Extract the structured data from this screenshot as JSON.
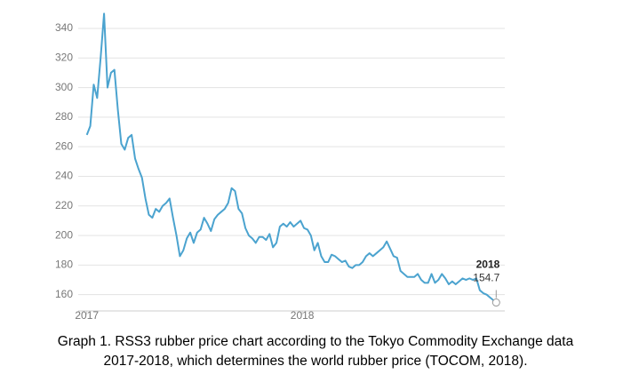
{
  "chart_data": {
    "type": "line",
    "x": [
      2017,
      2017.016,
      2017.032,
      2017.048,
      2017.064,
      2017.08,
      2017.096,
      2017.112,
      2017.128,
      2017.144,
      2017.16,
      2017.176,
      2017.192,
      2017.208,
      2017.224,
      2017.24,
      2017.256,
      2017.272,
      2017.288,
      2017.304,
      2017.32,
      2017.336,
      2017.352,
      2017.368,
      2017.384,
      2017.4,
      2017.416,
      2017.432,
      2017.448,
      2017.464,
      2017.48,
      2017.496,
      2017.512,
      2017.528,
      2017.544,
      2017.56,
      2017.576,
      2017.592,
      2017.608,
      2017.624,
      2017.64,
      2017.656,
      2017.672,
      2017.688,
      2017.704,
      2017.72,
      2017.736,
      2017.752,
      2017.768,
      2017.784,
      2017.8,
      2017.816,
      2017.832,
      2017.848,
      2017.864,
      2017.88,
      2017.896,
      2017.912,
      2017.928,
      2017.944,
      2017.96,
      2017.976,
      2017.992,
      2018.008,
      2018.024,
      2018.04,
      2018.056,
      2018.072,
      2018.088,
      2018.104,
      2018.12,
      2018.136,
      2018.152,
      2018.168,
      2018.184,
      2018.2,
      2018.216,
      2018.232,
      2018.248,
      2018.264,
      2018.28,
      2018.296,
      2018.312,
      2018.328,
      2018.344,
      2018.36,
      2018.376,
      2018.392,
      2018.408,
      2018.424,
      2018.44,
      2018.456,
      2018.472,
      2018.488,
      2018.504,
      2018.52,
      2018.536,
      2018.552,
      2018.568,
      2018.584,
      2018.6,
      2018.616,
      2018.632,
      2018.648,
      2018.664,
      2018.68,
      2018.696,
      2018.712,
      2018.728,
      2018.744,
      2018.76,
      2018.776,
      2018.792,
      2018.808,
      2018.824,
      2018.84,
      2018.856,
      2018.872,
      2018.9
    ],
    "series": [
      {
        "color": "#4ba3cf",
        "values": [
          268,
          274,
          302,
          293,
          320,
          350,
          300,
          310,
          312,
          285,
          262,
          258,
          266,
          268,
          252,
          245,
          239,
          225,
          214,
          212,
          218,
          216,
          220,
          222,
          225,
          212,
          200,
          186,
          190,
          198,
          202,
          195,
          202,
          204,
          212,
          208,
          203,
          211,
          214,
          216,
          218,
          222,
          232,
          230,
          218,
          215,
          205,
          200,
          198,
          195,
          199,
          199,
          197,
          201,
          192,
          195,
          206,
          208,
          206,
          209,
          206,
          208,
          210,
          205,
          204,
          200,
          190,
          195,
          186,
          182,
          182,
          187,
          186,
          184,
          182,
          183,
          179,
          178,
          180,
          180,
          182,
          186,
          188,
          186,
          188,
          190,
          192,
          196,
          191,
          186,
          185,
          176,
          174,
          172,
          172,
          172,
          174,
          170,
          168,
          168,
          174,
          168,
          170,
          174,
          171,
          167,
          169,
          167,
          169,
          171,
          170,
          171,
          170,
          171,
          163,
          161,
          160,
          158,
          154.7
        ]
      }
    ],
    "annotation": "2018",
    "xlim": [
      2016.96,
      2018.94
    ],
    "xticks": [
      2017,
      2018
    ],
    "ylim": [
      149,
      352
    ],
    "yticks": [
      160,
      180,
      200,
      220,
      240,
      260,
      280,
      300,
      320,
      340
    ],
    "grid": true
  },
  "caption": [
    "Graph 1. RSS3 rubber price chart according to the Tokyo Commodity Exchange data",
    "2017-2018, which determines the world rubber price (TOCOM, 2018)."
  ]
}
